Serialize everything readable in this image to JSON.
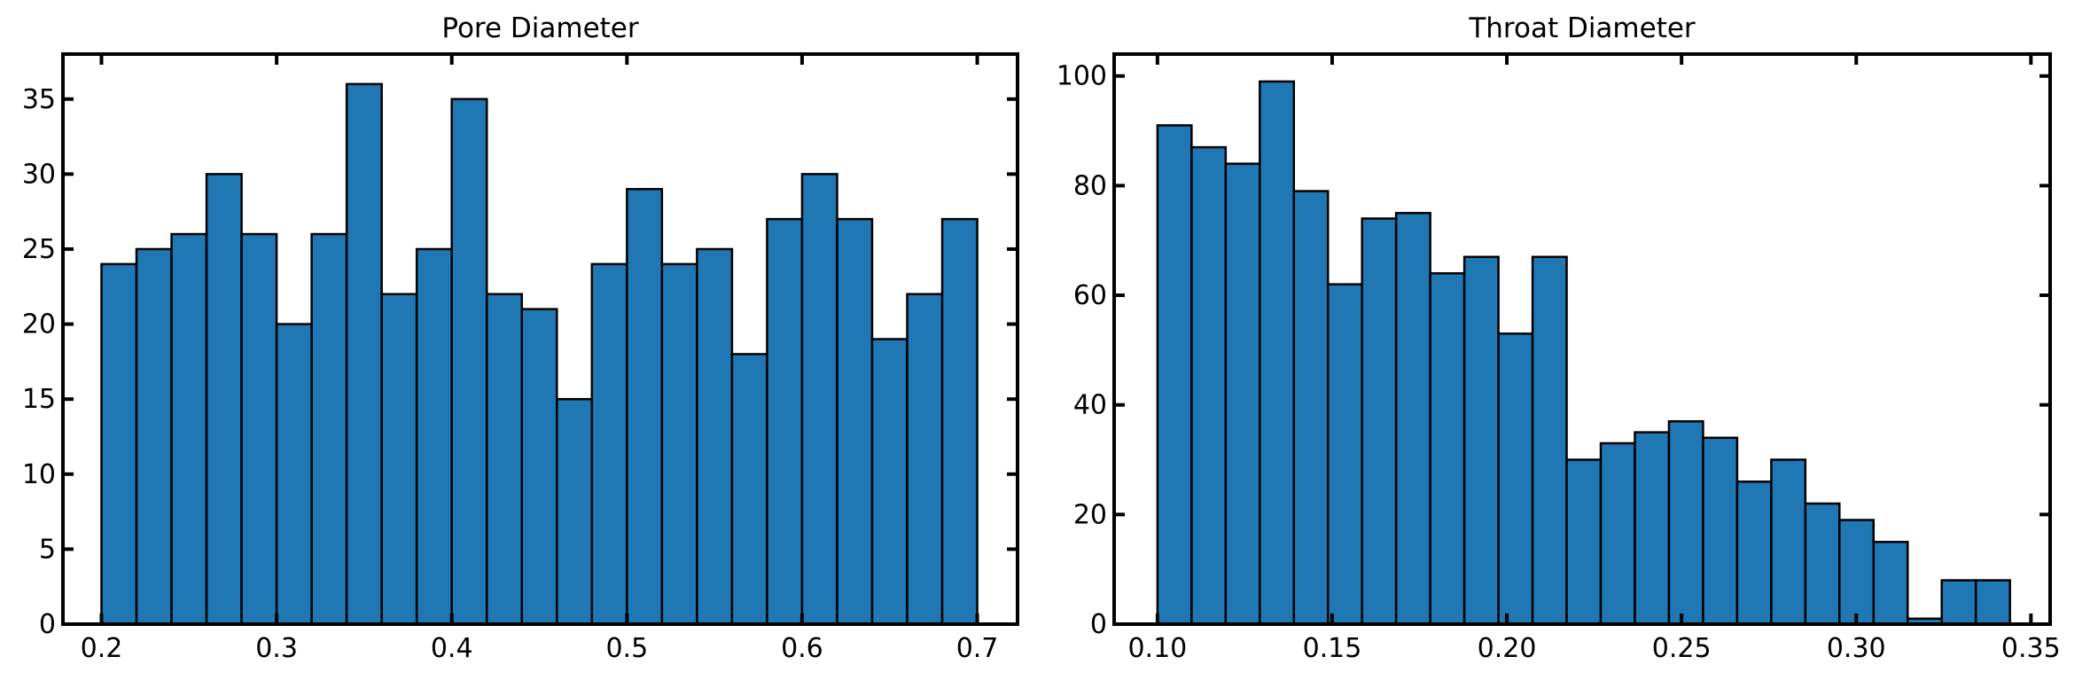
{
  "chart_data": [
    {
      "type": "bar",
      "title": "Pore Diameter",
      "xlabel": "",
      "ylabel": "",
      "bins_start": 0.2,
      "bin_width": 0.02,
      "counts": [
        24,
        25,
        26,
        30,
        26,
        20,
        26,
        36,
        22,
        25,
        35,
        22,
        21,
        15,
        24,
        29,
        24,
        25,
        18,
        27,
        30,
        27,
        19,
        22,
        27
      ],
      "xlim": [
        0.178,
        0.723
      ],
      "ylim": [
        0,
        38
      ],
      "xticks": [
        0.2,
        0.3,
        0.4,
        0.5,
        0.6,
        0.7
      ],
      "xtick_labels": [
        "0.2",
        "0.3",
        "0.4",
        "0.5",
        "0.6",
        "0.7"
      ],
      "yticks": [
        0,
        5,
        10,
        15,
        20,
        25,
        30,
        35
      ],
      "ytick_labels": [
        "0",
        "5",
        "10",
        "15",
        "20",
        "25",
        "30",
        "35"
      ],
      "bar_color": "#1f77b4",
      "edge_color": "#000000",
      "grid": false
    },
    {
      "type": "bar",
      "title": "Throat Diameter",
      "xlabel": "",
      "ylabel": "",
      "bins_start": 0.1,
      "bin_width": 0.00976,
      "counts": [
        91,
        87,
        84,
        99,
        79,
        62,
        74,
        75,
        64,
        67,
        53,
        67,
        30,
        33,
        35,
        37,
        34,
        26,
        30,
        22,
        19,
        15,
        1,
        8,
        8
      ],
      "xlim": [
        0.0876,
        0.3555
      ],
      "ylim": [
        0,
        104
      ],
      "xticks": [
        0.1,
        0.15,
        0.2,
        0.25,
        0.3,
        0.35
      ],
      "xtick_labels": [
        "0.10",
        "0.15",
        "0.20",
        "0.25",
        "0.30",
        "0.35"
      ],
      "yticks": [
        0,
        20,
        40,
        60,
        80,
        100
      ],
      "ytick_labels": [
        "0",
        "20",
        "40",
        "60",
        "80",
        "100"
      ],
      "bar_color": "#1f77b4",
      "edge_color": "#000000",
      "grid": false
    }
  ]
}
